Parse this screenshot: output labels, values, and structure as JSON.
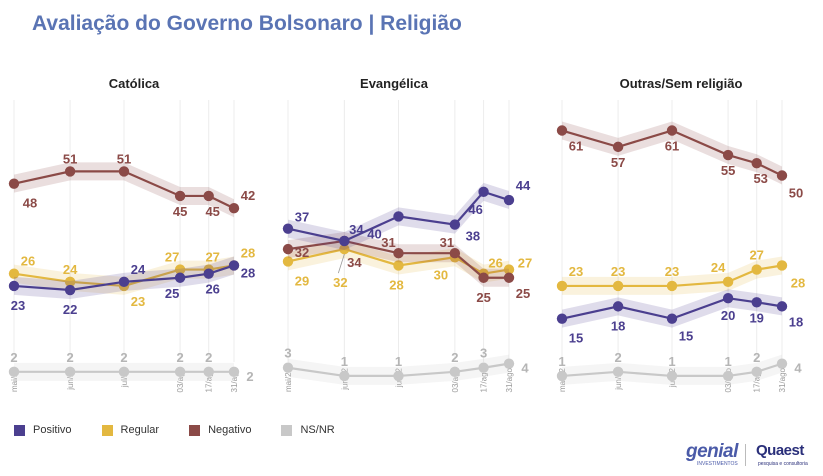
{
  "title": "Avaliação do Governo Bolsonaro | Religião",
  "legend": [
    {
      "label": "Positivo",
      "color": "#4b3f8f"
    },
    {
      "label": "Regular",
      "color": "#e3b840"
    },
    {
      "label": "Negativo",
      "color": "#8b4a47"
    },
    {
      "label": "NS/NR",
      "color": "#c8c8c8"
    }
  ],
  "logos": {
    "genial": "genial",
    "genial_sub": "INVESTIMENTOS",
    "quaest": "Quaest",
    "quaest_sub": "pesquisa e consultoria"
  },
  "chart_data": [
    {
      "type": "line",
      "title": "Católica",
      "x": [
        "mai/22",
        "jun/22",
        "jul/22",
        "03/ago",
        "17/ago",
        "31/ago"
      ],
      "ylim": [
        0,
        75
      ],
      "series": [
        {
          "name": "Positivo",
          "color": "#4b3f8f",
          "values": [
            23,
            22,
            24,
            25,
            26,
            28
          ]
        },
        {
          "name": "Regular",
          "color": "#e3b840",
          "values": [
            26,
            24,
            23,
            27,
            27,
            28
          ]
        },
        {
          "name": "Negativo",
          "color": "#8b4a47",
          "values": [
            48,
            51,
            51,
            45,
            45,
            42
          ]
        },
        {
          "name": "NS/NR",
          "color": "#c8c8c8",
          "values": [
            2,
            2,
            2,
            2,
            2,
            2
          ]
        }
      ]
    },
    {
      "type": "line",
      "title": "Evangélica",
      "x": [
        "mai/22",
        "jun/22",
        "jul/22",
        "03/ago",
        "17/ago",
        "31/ago"
      ],
      "ylim": [
        0,
        75
      ],
      "series": [
        {
          "name": "Positivo",
          "color": "#4b3f8f",
          "values": [
            37,
            34,
            40,
            38,
            46,
            44
          ]
        },
        {
          "name": "Regular",
          "color": "#e3b840",
          "values": [
            29,
            32,
            28,
            30,
            26,
            27
          ]
        },
        {
          "name": "Negativo",
          "color": "#8b4a47",
          "values": [
            32,
            34,
            31,
            31,
            25,
            25
          ]
        },
        {
          "name": "NS/NR",
          "color": "#c8c8c8",
          "values": [
            3,
            1,
            1,
            2,
            3,
            4
          ]
        }
      ]
    },
    {
      "type": "line",
      "title": "Outras/Sem religião",
      "x": [
        "mai/22",
        "jun/22",
        "jul/22",
        "03/ago",
        "17/ago",
        "31/ago"
      ],
      "ylim": [
        0,
        75
      ],
      "series": [
        {
          "name": "Positivo",
          "color": "#4b3f8f",
          "values": [
            15,
            18,
            15,
            20,
            19,
            18
          ]
        },
        {
          "name": "Regular",
          "color": "#e3b840",
          "values": [
            23,
            23,
            23,
            24,
            27,
            28
          ]
        },
        {
          "name": "Negativo",
          "color": "#8b4a47",
          "values": [
            61,
            57,
            61,
            55,
            53,
            50
          ]
        },
        {
          "name": "NS/NR",
          "color": "#c8c8c8",
          "values": [
            1,
            2,
            1,
            1,
            2,
            4
          ]
        }
      ]
    }
  ]
}
